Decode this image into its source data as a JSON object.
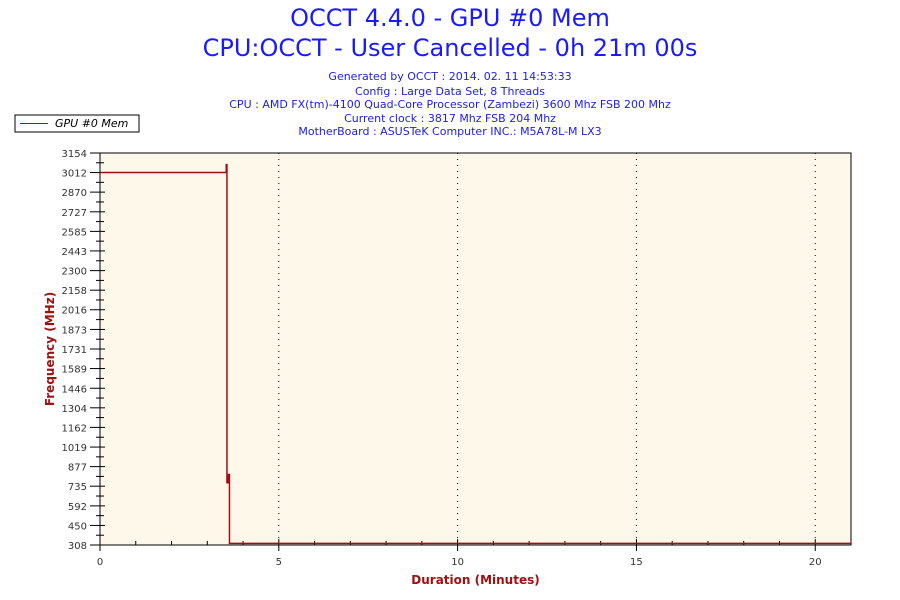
{
  "chart_data": {
    "type": "line",
    "title": "OCCT 4.4.0 - GPU #0 Mem",
    "subtitle": "CPU:OCCT - User Cancelled - 0h 21m 00s",
    "info_lines": [
      "Generated by OCCT : 2014. 02. 11 14:53:33",
      "Config : Large Data Set, 8 Threads",
      "CPU : AMD FX(tm)-4100 Quad-Core Processor (Zambezi) 3600 Mhz FSB 200 Mhz",
      "Current clock : 3817 Mhz FSB 204 Mhz",
      "MotherBoard : ASUSTeK Computer INC.: M5A78L-M LX3"
    ],
    "xlabel": "Duration (Minutes)",
    "ylabel": "Frequency (MHz)",
    "xlim": [
      0,
      21
    ],
    "ylim": [
      308,
      3154
    ],
    "xticks": [
      0,
      5,
      10,
      15,
      20
    ],
    "yticks": [
      3154,
      3012,
      2870,
      2727,
      2585,
      2443,
      2300,
      2158,
      2016,
      1873,
      1731,
      1589,
      1446,
      1304,
      1162,
      1019,
      877,
      735,
      592,
      450,
      308
    ],
    "grid": "vertical dotted",
    "legend": "top-left",
    "colors": {
      "series": "#a01010",
      "plot_bg": "#fdf8ea",
      "axis_label": "#a01010"
    },
    "series": [
      {
        "name": "GPU #0 Mem",
        "x": [
          0,
          3.53,
          3.53,
          3.55,
          3.55,
          3.58,
          3.58,
          3.62,
          3.62,
          21
        ],
        "y": [
          3012,
          3012,
          3070,
          3070,
          760,
          760,
          820,
          820,
          320,
          320
        ]
      }
    ]
  }
}
